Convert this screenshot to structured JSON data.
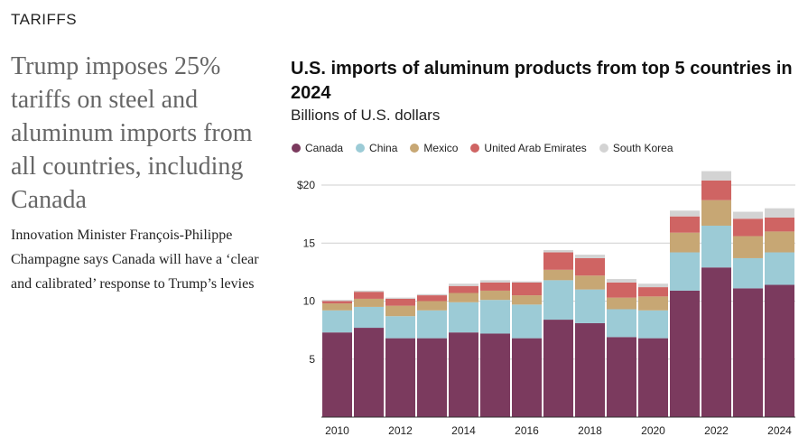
{
  "article": {
    "section": "TARIFFS",
    "headline": "Trump imposes 25% tariffs on steel and aluminum imports from all countries, including Canada",
    "dek": "Innovation Minister François-Philippe Champagne says Canada will have a ‘clear and calibrated’ response to Trump’s levies"
  },
  "colors": {
    "Canada": "#7b3a5e",
    "China": "#9ccbd6",
    "Mexico": "#c7a774",
    "United Arab Emirates": "#cf6463",
    "South Korea": "#d3d3d3"
  },
  "chart_data": {
    "type": "bar",
    "stacked": true,
    "title": "U.S. imports of aluminum products from top 5 countries in 2024",
    "subtitle": "Billions of U.S. dollars",
    "categories": [
      "2010",
      "2011",
      "2012",
      "2013",
      "2014",
      "2015",
      "2016",
      "2017",
      "2018",
      "2019",
      "2020",
      "2021",
      "2022",
      "2023",
      "2024"
    ],
    "x_tick_labels": [
      "2010",
      "2012",
      "2014",
      "2016",
      "2018",
      "2020",
      "2022",
      "2024"
    ],
    "y_ticks": [
      5,
      10,
      15,
      20
    ],
    "y_tick_labels": [
      "5",
      "10",
      "15",
      "$20"
    ],
    "ylim": [
      0,
      22
    ],
    "legend_position": "top-left",
    "gridlines": true,
    "series": [
      {
        "name": "Canada",
        "values": [
          7.3,
          7.7,
          6.8,
          6.8,
          7.3,
          7.2,
          6.8,
          8.4,
          8.1,
          6.9,
          6.8,
          10.9,
          12.9,
          11.1,
          11.4
        ]
      },
      {
        "name": "China",
        "values": [
          1.9,
          1.8,
          1.9,
          2.4,
          2.6,
          2.9,
          2.9,
          3.4,
          2.9,
          2.4,
          2.4,
          3.3,
          3.6,
          2.6,
          2.8
        ]
      },
      {
        "name": "Mexico",
        "values": [
          0.6,
          0.7,
          0.9,
          0.8,
          0.8,
          0.8,
          0.8,
          0.9,
          1.2,
          1.0,
          1.2,
          1.7,
          2.2,
          1.9,
          1.8
        ]
      },
      {
        "name": "United Arab Emirates",
        "values": [
          0.2,
          0.6,
          0.6,
          0.5,
          0.6,
          0.7,
          1.1,
          1.5,
          1.5,
          1.3,
          0.8,
          1.4,
          1.7,
          1.5,
          1.2
        ]
      },
      {
        "name": "South Korea",
        "values": [
          0.1,
          0.1,
          0.1,
          0.1,
          0.2,
          0.2,
          0.1,
          0.2,
          0.3,
          0.3,
          0.3,
          0.5,
          0.8,
          0.6,
          0.8
        ]
      }
    ]
  }
}
